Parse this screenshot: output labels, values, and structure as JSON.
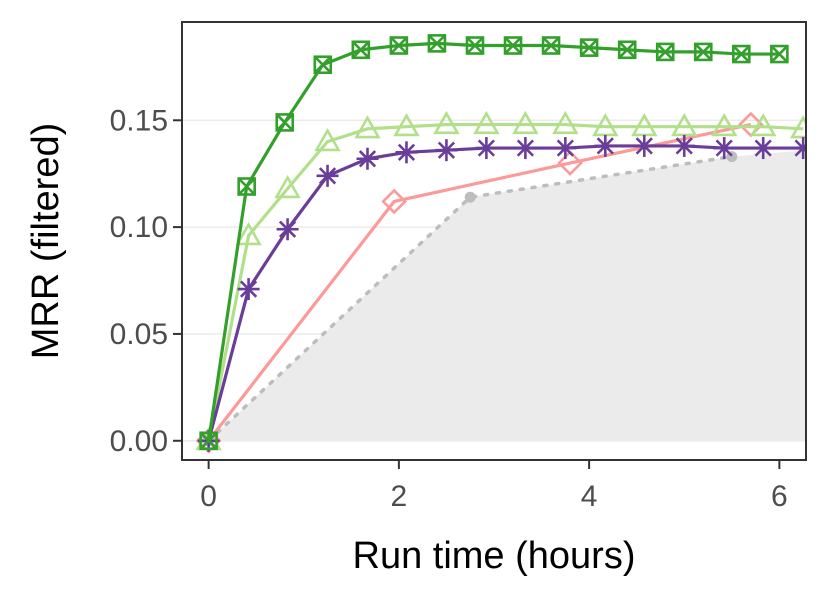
{
  "chart_data": {
    "type": "line",
    "xlabel": "Run time (hours)",
    "ylabel": "MRR (filtered)",
    "xlim": [
      -0.28,
      6.28
    ],
    "ylim": [
      -0.009,
      0.196
    ],
    "x_ticks": [
      0,
      2,
      4,
      6
    ],
    "y_ticks": [
      0.0,
      0.05,
      0.1,
      0.15
    ],
    "x_tick_labels": [
      "0",
      "2",
      "4",
      "6"
    ],
    "y_tick_labels": [
      "0.00",
      "0.05",
      "0.10",
      "0.15"
    ],
    "grid": true,
    "legend": "none",
    "background_area": {
      "color": "#ebebeb",
      "x": [
        0,
        2.75,
        5.5,
        6.28
      ],
      "y": [
        0,
        0.114,
        0.133,
        0.136
      ]
    },
    "series": [
      {
        "color": "#bdbdbd",
        "marker": "dot",
        "dash": "dotted",
        "x": [
          0,
          2.75,
          5.5
        ],
        "y": [
          0,
          0.114,
          0.133
        ]
      },
      {
        "color": "#fb9a99",
        "marker": "diamond",
        "x": [
          0,
          1.95,
          3.8,
          5.7
        ],
        "y": [
          0,
          0.112,
          0.13,
          0.148
        ]
      },
      {
        "color": "#b2df8a",
        "marker": "triangle",
        "x": [
          0,
          0.42,
          0.83,
          1.25,
          1.67,
          2.08,
          2.5,
          2.92,
          3.33,
          3.75,
          4.17,
          4.58,
          5.0,
          5.42,
          5.83,
          6.25
        ],
        "y": [
          0,
          0.096,
          0.118,
          0.14,
          0.146,
          0.147,
          0.148,
          0.148,
          0.148,
          0.148,
          0.147,
          0.147,
          0.147,
          0.147,
          0.147,
          0.146
        ]
      },
      {
        "color": "#6a3d9a",
        "marker": "asterisk",
        "x": [
          0,
          0.42,
          0.83,
          1.25,
          1.67,
          2.08,
          2.5,
          2.92,
          3.33,
          3.75,
          4.17,
          4.58,
          5.0,
          5.42,
          5.83,
          6.25
        ],
        "y": [
          0,
          0.071,
          0.099,
          0.124,
          0.132,
          0.135,
          0.136,
          0.137,
          0.137,
          0.137,
          0.138,
          0.138,
          0.138,
          0.137,
          0.137,
          0.137
        ]
      },
      {
        "color": "#33a02c",
        "marker": "square-cross",
        "x": [
          0,
          0.4,
          0.8,
          1.2,
          1.6,
          2.0,
          2.4,
          2.8,
          3.2,
          3.6,
          4.0,
          4.4,
          4.8,
          5.2,
          5.6,
          6.0
        ],
        "y": [
          0,
          0.119,
          0.149,
          0.176,
          0.183,
          0.185,
          0.186,
          0.185,
          0.185,
          0.185,
          0.184,
          0.183,
          0.182,
          0.182,
          0.181,
          0.181
        ]
      }
    ]
  }
}
